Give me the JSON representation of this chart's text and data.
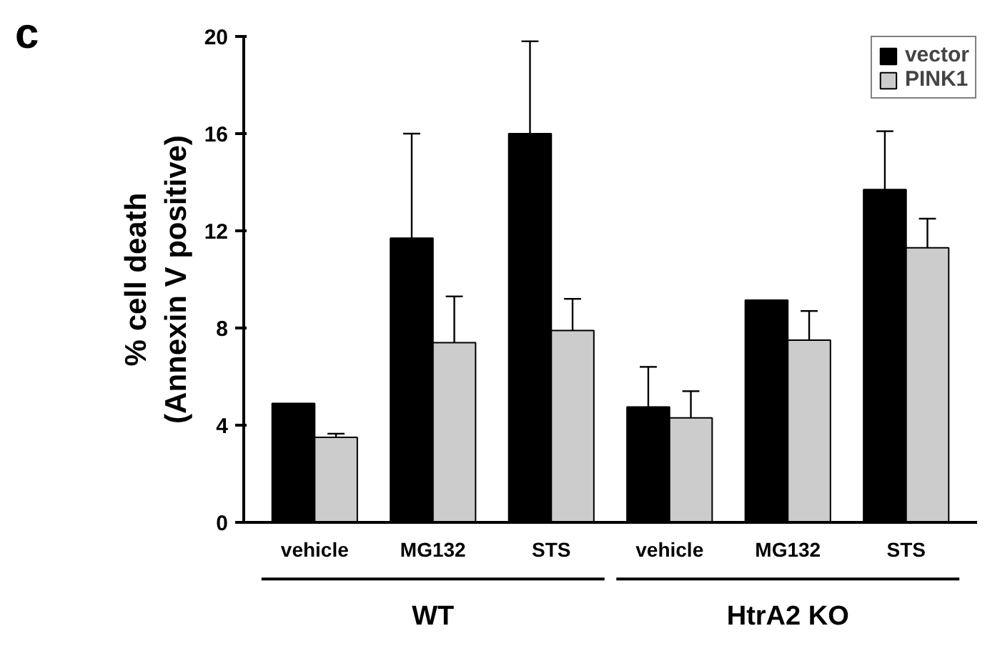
{
  "chart_data": {
    "type": "bar",
    "ylabel": "% cell death\n(Annexin V positive)",
    "categories": [
      "vehicle",
      "MG132",
      "STS",
      "vehicle",
      "MG132",
      "STS"
    ],
    "series": [
      {
        "name": "vector",
        "color": "#000000",
        "values": [
          4.9,
          11.7,
          16.0,
          4.75,
          9.15,
          13.7
        ],
        "errors": [
          null,
          [
            11.7,
            16.0
          ],
          [
            16.0,
            19.8
          ],
          [
            4.75,
            6.4
          ],
          null,
          [
            13.7,
            16.1
          ]
        ]
      },
      {
        "name": "PINK1",
        "color": "#cccccc",
        "values": [
          3.5,
          7.4,
          7.9,
          4.3,
          7.5,
          11.3
        ],
        "errors": [
          [
            3.5,
            3.65
          ],
          [
            7.4,
            9.3
          ],
          [
            7.9,
            9.2
          ],
          [
            4.3,
            5.4
          ],
          [
            7.5,
            8.7
          ],
          [
            11.3,
            12.5
          ]
        ]
      }
    ],
    "ylim": [
      0,
      20
    ],
    "yticks": [
      0,
      4,
      8,
      12,
      16,
      20
    ],
    "grid": false,
    "legend": "top right",
    "annotations": [
      "c",
      "WT",
      "HtrA2 KO"
    ]
  }
}
